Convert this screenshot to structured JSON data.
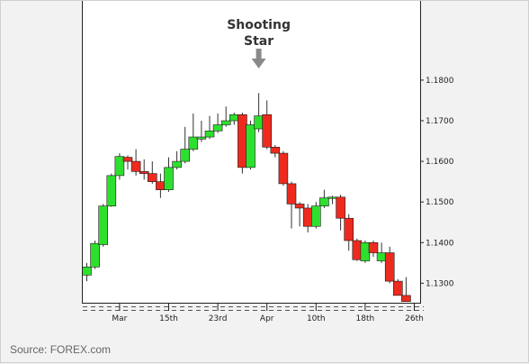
{
  "source_label": "Source: FOREX.com",
  "chart_data": {
    "type": "candlestick",
    "title": "",
    "xlabel": "",
    "ylabel": "",
    "ylim": [
      1.1252,
      1.1995
    ],
    "grid": false,
    "colors": {
      "up": "#2ee02e",
      "down": "#ee2a1e",
      "wick": "#333333",
      "arrow": "#8a8a8a"
    },
    "y_ticks": [
      "1.1800",
      "1.1700",
      "1.1600",
      "1.1500",
      "1.1400",
      "1.1300"
    ],
    "x_ticks": [
      {
        "label": "Mar",
        "index": 4
      },
      {
        "label": "15th",
        "index": 10
      },
      {
        "label": "23rd",
        "index": 16
      },
      {
        "label": "Apr",
        "index": 22
      },
      {
        "label": "10th",
        "index": 28
      },
      {
        "label": "18th",
        "index": 34
      },
      {
        "label": "26th",
        "index": 40
      }
    ],
    "annotation": {
      "lines": [
        "Shooting",
        "Star"
      ],
      "index": 21
    },
    "candles": [
      {
        "o": 1.132,
        "h": 1.135,
        "l": 1.1305,
        "c": 1.134
      },
      {
        "o": 1.134,
        "h": 1.1405,
        "l": 1.1335,
        "c": 1.1398
      },
      {
        "o": 1.1395,
        "h": 1.1495,
        "l": 1.139,
        "c": 1.149
      },
      {
        "o": 1.149,
        "h": 1.157,
        "l": 1.1488,
        "c": 1.1565
      },
      {
        "o": 1.1565,
        "h": 1.162,
        "l": 1.1555,
        "c": 1.1612
      },
      {
        "o": 1.161,
        "h": 1.1615,
        "l": 1.158,
        "c": 1.16
      },
      {
        "o": 1.16,
        "h": 1.163,
        "l": 1.1565,
        "c": 1.1575
      },
      {
        "o": 1.1575,
        "h": 1.1605,
        "l": 1.1555,
        "c": 1.157
      },
      {
        "o": 1.157,
        "h": 1.16,
        "l": 1.1545,
        "c": 1.155
      },
      {
        "o": 1.155,
        "h": 1.157,
        "l": 1.151,
        "c": 1.153
      },
      {
        "o": 1.153,
        "h": 1.161,
        "l": 1.1525,
        "c": 1.1585
      },
      {
        "o": 1.1585,
        "h": 1.1625,
        "l": 1.158,
        "c": 1.16
      },
      {
        "o": 1.16,
        "h": 1.1685,
        "l": 1.1595,
        "c": 1.163
      },
      {
        "o": 1.163,
        "h": 1.1718,
        "l": 1.1625,
        "c": 1.166
      },
      {
        "o": 1.1655,
        "h": 1.17,
        "l": 1.1648,
        "c": 1.166
      },
      {
        "o": 1.166,
        "h": 1.1712,
        "l": 1.1655,
        "c": 1.1675
      },
      {
        "o": 1.1675,
        "h": 1.1718,
        "l": 1.167,
        "c": 1.169
      },
      {
        "o": 1.169,
        "h": 1.1735,
        "l": 1.1685,
        "c": 1.17
      },
      {
        "o": 1.17,
        "h": 1.172,
        "l": 1.169,
        "c": 1.1715
      },
      {
        "o": 1.1715,
        "h": 1.172,
        "l": 1.157,
        "c": 1.1585
      },
      {
        "o": 1.1585,
        "h": 1.17,
        "l": 1.158,
        "c": 1.169
      },
      {
        "o": 1.168,
        "h": 1.1768,
        "l": 1.1672,
        "c": 1.1712
      },
      {
        "o": 1.1715,
        "h": 1.175,
        "l": 1.163,
        "c": 1.1635
      },
      {
        "o": 1.1635,
        "h": 1.164,
        "l": 1.161,
        "c": 1.162
      },
      {
        "o": 1.162,
        "h": 1.1625,
        "l": 1.154,
        "c": 1.1545
      },
      {
        "o": 1.1545,
        "h": 1.155,
        "l": 1.1435,
        "c": 1.1495
      },
      {
        "o": 1.1495,
        "h": 1.15,
        "l": 1.144,
        "c": 1.1485
      },
      {
        "o": 1.1485,
        "h": 1.1495,
        "l": 1.1425,
        "c": 1.144
      },
      {
        "o": 1.144,
        "h": 1.15,
        "l": 1.1435,
        "c": 1.149
      },
      {
        "o": 1.149,
        "h": 1.153,
        "l": 1.1485,
        "c": 1.151
      },
      {
        "o": 1.151,
        "h": 1.1515,
        "l": 1.1495,
        "c": 1.1512
      },
      {
        "o": 1.1512,
        "h": 1.1518,
        "l": 1.143,
        "c": 1.146
      },
      {
        "o": 1.146,
        "h": 1.147,
        "l": 1.138,
        "c": 1.1405
      },
      {
        "o": 1.1405,
        "h": 1.141,
        "l": 1.1355,
        "c": 1.1358
      },
      {
        "o": 1.1355,
        "h": 1.1405,
        "l": 1.135,
        "c": 1.14
      },
      {
        "o": 1.14,
        "h": 1.1405,
        "l": 1.1365,
        "c": 1.1375
      },
      {
        "o": 1.1355,
        "h": 1.14,
        "l": 1.135,
        "c": 1.1375
      },
      {
        "o": 1.1375,
        "h": 1.139,
        "l": 1.13,
        "c": 1.1305
      },
      {
        "o": 1.1305,
        "h": 1.131,
        "l": 1.127,
        "c": 1.127
      },
      {
        "o": 1.127,
        "h": 1.1315,
        "l": 1.1255,
        "c": 1.1255
      }
    ]
  }
}
